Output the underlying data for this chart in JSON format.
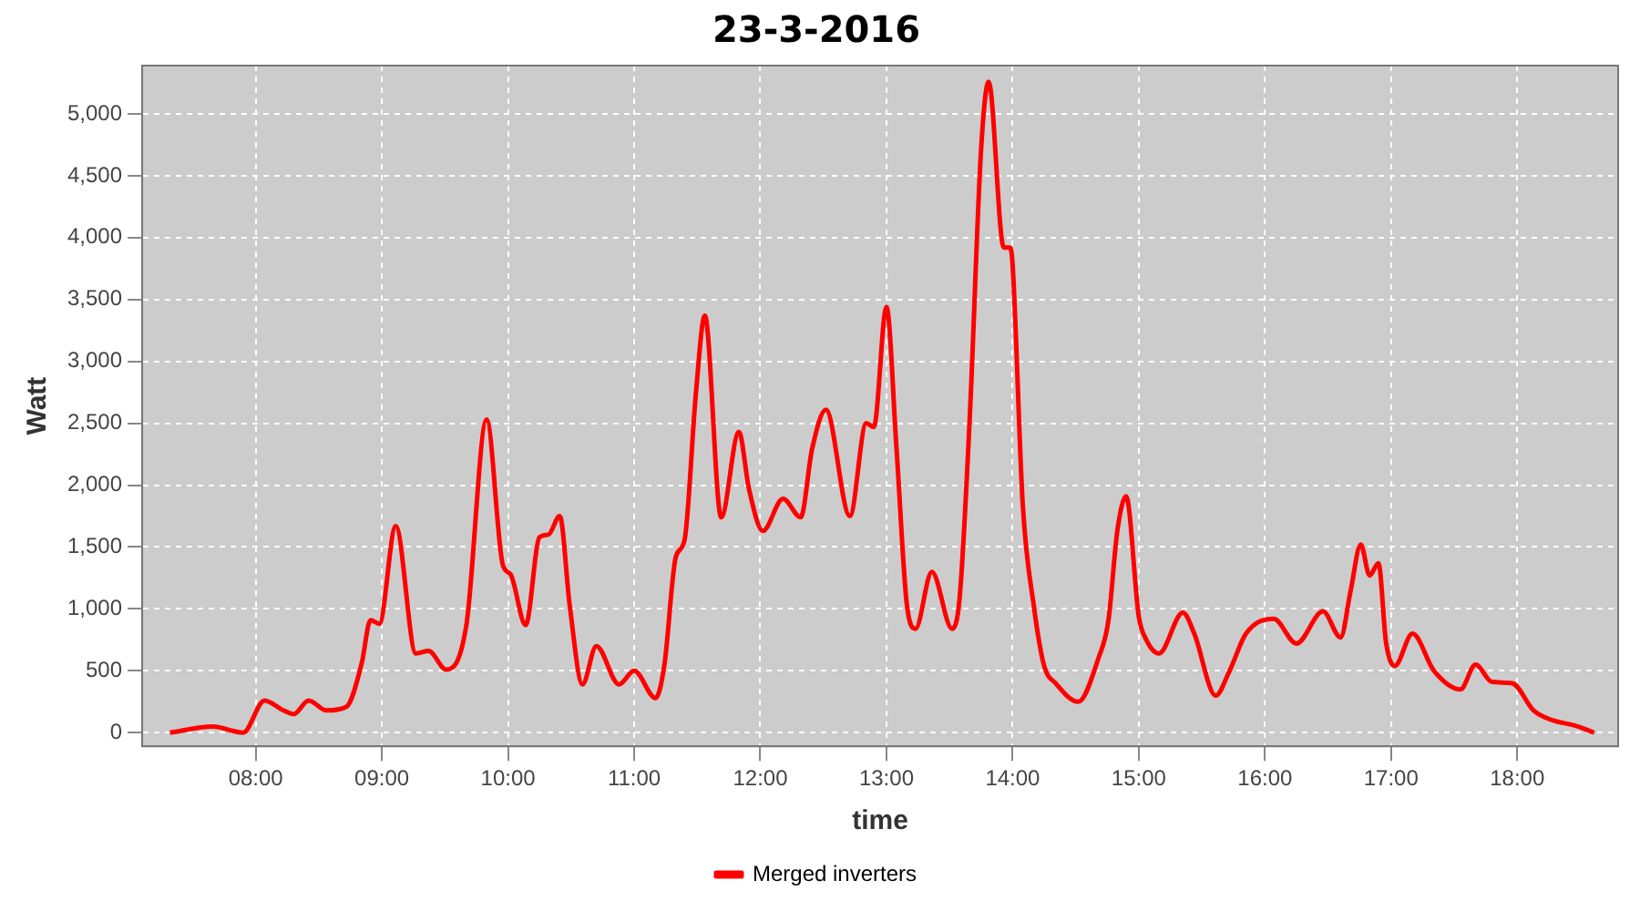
{
  "chart_data": {
    "type": "line",
    "title": "23-3-2016",
    "xlabel": "time",
    "ylabel": "Watt",
    "x": [
      7.32,
      7.66,
      7.9,
      8.07,
      8.22,
      8.3,
      8.42,
      8.56,
      8.72,
      8.84,
      8.91,
      8.98,
      9.11,
      9.27,
      9.37,
      9.51,
      9.67,
      9.83,
      9.96,
      10.02,
      10.14,
      10.25,
      10.32,
      10.41,
      10.49,
      10.59,
      10.7,
      10.88,
      11.0,
      11.17,
      11.24,
      11.33,
      11.4,
      11.49,
      11.56,
      11.69,
      11.83,
      11.91,
      12.02,
      12.18,
      12.32,
      12.41,
      12.52,
      12.71,
      12.84,
      12.9,
      13.0,
      13.08,
      13.16,
      13.23,
      13.36,
      13.52,
      13.58,
      13.66,
      13.75,
      13.81,
      13.93,
      13.98,
      14.0,
      14.08,
      14.17,
      14.25,
      14.34,
      14.52,
      14.68,
      14.76,
      14.83,
      14.9,
      15.0,
      15.06,
      15.16,
      15.35,
      15.44,
      15.61,
      15.72,
      15.85,
      16.07,
      16.25,
      16.46,
      16.6,
      16.68,
      16.76,
      16.83,
      16.9,
      16.96,
      17.03,
      17.17,
      17.34,
      17.55,
      17.67,
      17.8,
      17.96,
      18.13,
      18.28,
      18.45,
      18.61
    ],
    "series": [
      {
        "name": "Merged inverters",
        "color": "#ff0000",
        "values": [
          0,
          50,
          0,
          260,
          180,
          150,
          260,
          180,
          210,
          560,
          910,
          880,
          1670,
          640,
          660,
          510,
          870,
          2530,
          1350,
          1280,
          870,
          1580,
          1600,
          1750,
          1020,
          390,
          700,
          390,
          500,
          280,
          550,
          1420,
          1560,
          2750,
          3370,
          1740,
          2430,
          1970,
          1630,
          1890,
          1740,
          2290,
          2610,
          1750,
          2500,
          2470,
          3440,
          2290,
          1050,
          840,
          1300,
          840,
          1090,
          2540,
          4710,
          5260,
          3920,
          3920,
          3780,
          1850,
          1010,
          540,
          400,
          250,
          600,
          910,
          1630,
          1910,
          940,
          750,
          640,
          970,
          800,
          300,
          500,
          800,
          920,
          720,
          980,
          770,
          1150,
          1520,
          1270,
          1370,
          730,
          540,
          800,
          500,
          350,
          550,
          410,
          400,
          180,
          100,
          60,
          0
        ]
      }
    ],
    "xlim": [
      7.1,
      18.8
    ],
    "xticks": [
      {
        "value": 8,
        "label": "08:00"
      },
      {
        "value": 9,
        "label": "09:00"
      },
      {
        "value": 10,
        "label": "10:00"
      },
      {
        "value": 11,
        "label": "11:00"
      },
      {
        "value": 12,
        "label": "12:00"
      },
      {
        "value": 13,
        "label": "13:00"
      },
      {
        "value": 14,
        "label": "14:00"
      },
      {
        "value": 15,
        "label": "15:00"
      },
      {
        "value": 16,
        "label": "16:00"
      },
      {
        "value": 17,
        "label": "17:00"
      },
      {
        "value": 18,
        "label": "18:00"
      }
    ],
    "ylim": [
      -110,
      5390
    ],
    "yticks": [
      0,
      500,
      {
        "value": 1000,
        "label": "1,000"
      },
      {
        "value": 1500,
        "label": "1,500"
      },
      {
        "value": 2000,
        "label": "2,000"
      },
      {
        "value": 2500,
        "label": "2,500"
      },
      {
        "value": 3000,
        "label": "3,000"
      },
      {
        "value": 3500,
        "label": "3,500"
      },
      {
        "value": 4000,
        "label": "4,000"
      },
      {
        "value": 4500,
        "label": "4,500"
      },
      {
        "value": 5000,
        "label": "5,000"
      }
    ],
    "grid": true,
    "legend": "bottom"
  }
}
